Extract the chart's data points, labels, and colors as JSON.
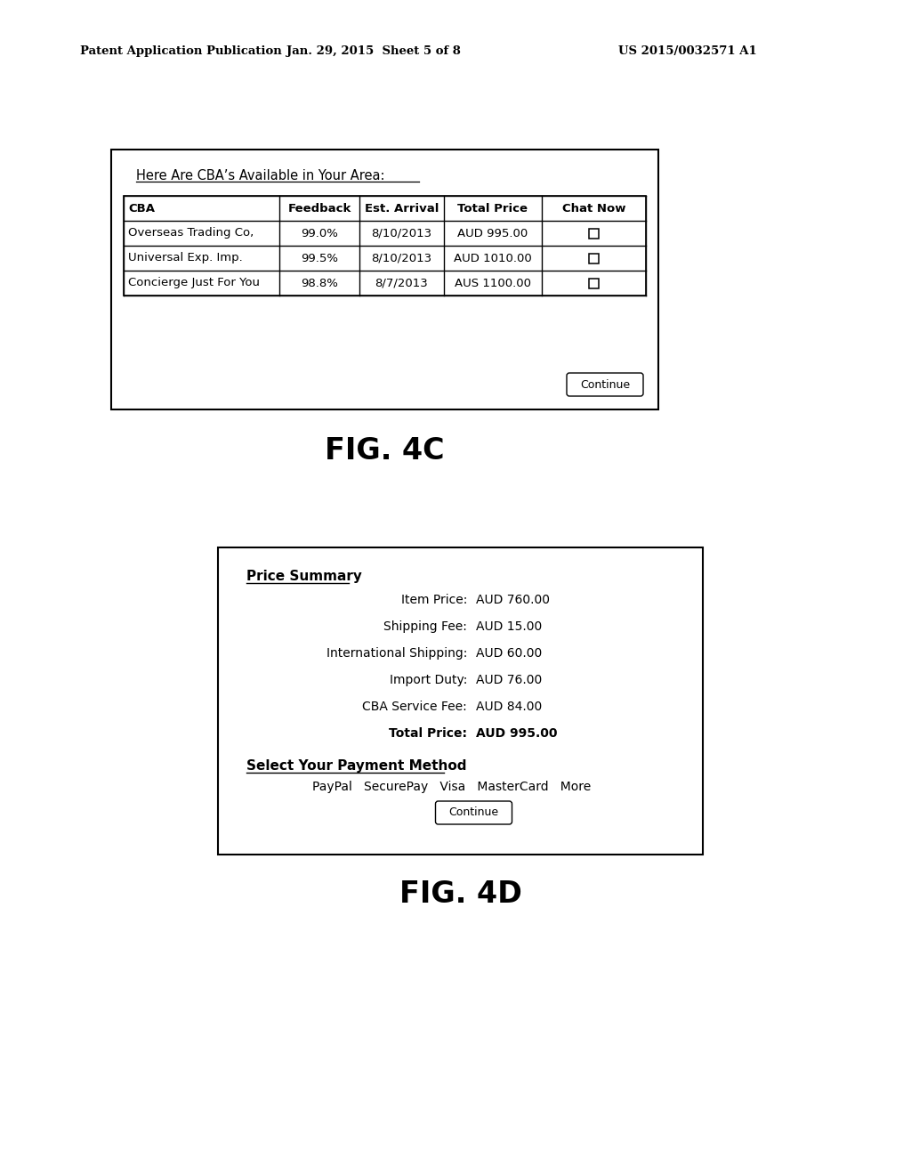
{
  "header_left": "Patent Application Publication",
  "header_mid": "Jan. 29, 2015  Sheet 5 of 8",
  "header_right": "US 2015/0032571 A1",
  "fig4c_label": "FIG. 4C",
  "fig4d_label": "FIG. 4D",
  "fig4c_title": "Here Are CBA’s Available in Your Area:",
  "table_headers": [
    "CBA",
    "Feedback",
    "Est. Arrival",
    "Total Price",
    "Chat Now"
  ],
  "table_rows": [
    [
      "Overseas Trading Co,",
      "99.0%",
      "8/10/2013",
      "AUD 995.00"
    ],
    [
      "Universal Exp. Imp.",
      "99.5%",
      "8/10/2013",
      "AUD 1010.00"
    ],
    [
      "Concierge Just For You",
      "98.8%",
      "8/7/2013",
      "AUS 1100.00"
    ]
  ],
  "fig4d_price_summary_title": "Price Summary",
  "fig4d_rows": [
    [
      "Item Price:",
      "AUD 760.00"
    ],
    [
      "Shipping Fee:",
      "AUD 15.00"
    ],
    [
      "International Shipping:",
      "AUD 60.00"
    ],
    [
      "Import Duty:",
      "AUD 76.00"
    ],
    [
      "CBA Service Fee:",
      "AUD 84.00"
    ],
    [
      "Total Price:",
      "AUD 995.00"
    ]
  ],
  "fig4d_payment_label": "Select Your Payment Method",
  "fig4d_payment_methods": "PayPal   SecurePay   Visa   MasterCard   More",
  "continue_button": "Continue",
  "bg_color": "#ffffff",
  "text_color": "#000000"
}
